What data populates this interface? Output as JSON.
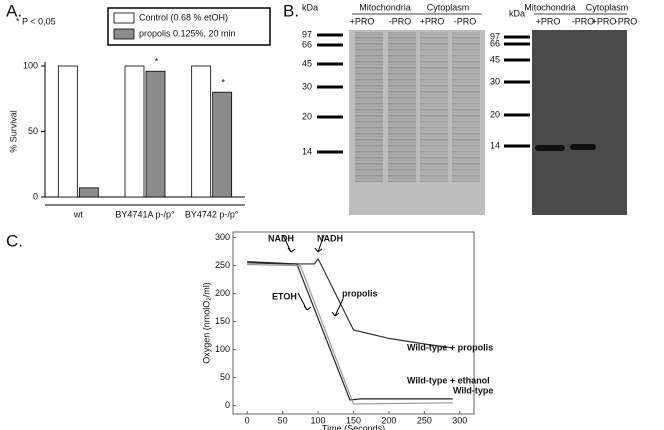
{
  "panel_labels": [
    "A.",
    "B.",
    "C."
  ],
  "chart_data": [
    {
      "type": "bar",
      "ylabel": "% Survival",
      "note": "* P < 0,05",
      "categories": [
        "wt",
        "BY4741A  p-/p°",
        "BY4742 p-/p°"
      ],
      "series": [
        {
          "name": "Control (0.68 % etOH)",
          "color": "#ffffff",
          "values": [
            100,
            100,
            100
          ]
        },
        {
          "name": "propolis 0.125%, 20 min",
          "color": "#8c8c8c",
          "values": [
            7,
            96,
            80
          ]
        }
      ],
      "annotations": [
        "*",
        "*"
      ],
      "ylim": [
        0,
        100
      ],
      "yticks": [
        0,
        50,
        100
      ]
    },
    {
      "type": "line",
      "xlabel": "Time (Seconds)",
      "ylabel": "Oxygen (nmolO₂/ml)",
      "series": [
        {
          "name": "Wild-type + propolis",
          "color": "#333333",
          "x": [
            0,
            60,
            95,
            100,
            105,
            150,
            200,
            250,
            290
          ],
          "values": [
            255,
            253,
            253,
            262,
            250,
            135,
            120,
            110,
            103
          ]
        },
        {
          "name": "Wild-type + ethanol",
          "color": "#222222",
          "x": [
            0,
            70,
            145,
            160,
            290
          ],
          "values": [
            257,
            253,
            10,
            12,
            12
          ]
        },
        {
          "name": "Wild-type",
          "color": "#999999",
          "x": [
            0,
            75,
            150,
            290
          ],
          "values": [
            252,
            250,
            3,
            5
          ]
        }
      ],
      "annotations": [
        "NADH",
        "NADH",
        "ETOH",
        "propolis"
      ],
      "xlim": [
        -20,
        320
      ],
      "ylim": [
        -15,
        310
      ],
      "xticks": [
        0,
        50,
        100,
        150,
        200,
        250,
        300
      ],
      "yticks": [
        0,
        50,
        100,
        150,
        200,
        250,
        300
      ]
    }
  ],
  "gels": [
    {
      "unit": "kDa",
      "markers": [
        "97",
        "66",
        "45",
        "30",
        "20",
        "14"
      ],
      "groups": [
        "Mitochondria",
        "Cytoplasm"
      ],
      "lanes": [
        "+PRO",
        "-PRO",
        "+PRO",
        "-PRO"
      ]
    },
    {
      "unit": "kDa",
      "markers": [
        "97",
        "66",
        "45",
        "30",
        "20",
        "14"
      ],
      "groups": [
        "Mitochondria",
        "Cytoplasm"
      ],
      "lanes": [
        "+PRO",
        "-PRO",
        "+PRO",
        "-PRO"
      ]
    }
  ]
}
